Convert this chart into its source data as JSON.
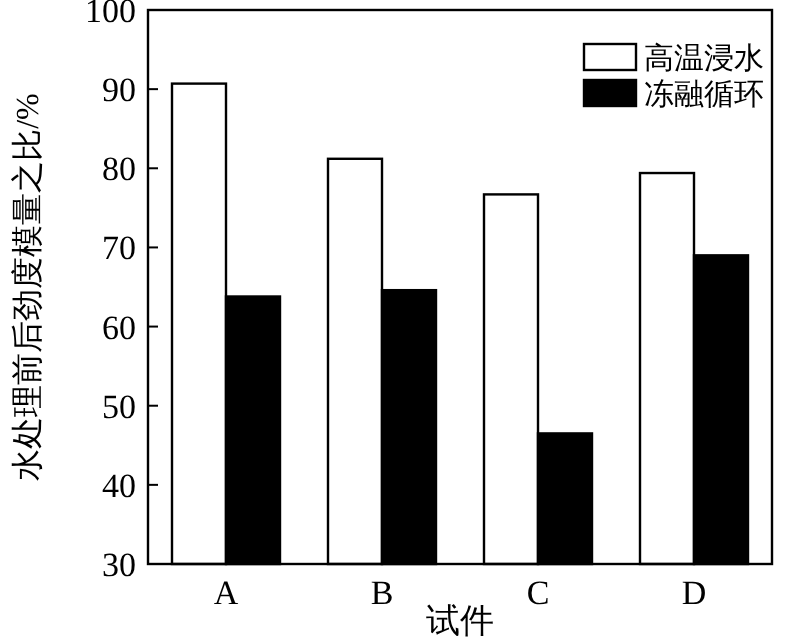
{
  "chart_data": {
    "type": "bar",
    "xlabel": "试件",
    "ylabel": "水处理前后劲度模量之比/%",
    "categories": [
      "A",
      "B",
      "C",
      "D"
    ],
    "series": [
      {
        "name": "高温浸水",
        "color": "#ffffff",
        "values": [
          90.7,
          81.2,
          76.7,
          79.4
        ]
      },
      {
        "name": "冻融循环",
        "color": "#000000",
        "values": [
          63.8,
          64.6,
          46.5,
          69.0
        ]
      }
    ],
    "ylim": [
      30,
      100
    ],
    "yticks": [
      30,
      40,
      50,
      60,
      70,
      80,
      90,
      100
    ],
    "legend": "top right"
  }
}
